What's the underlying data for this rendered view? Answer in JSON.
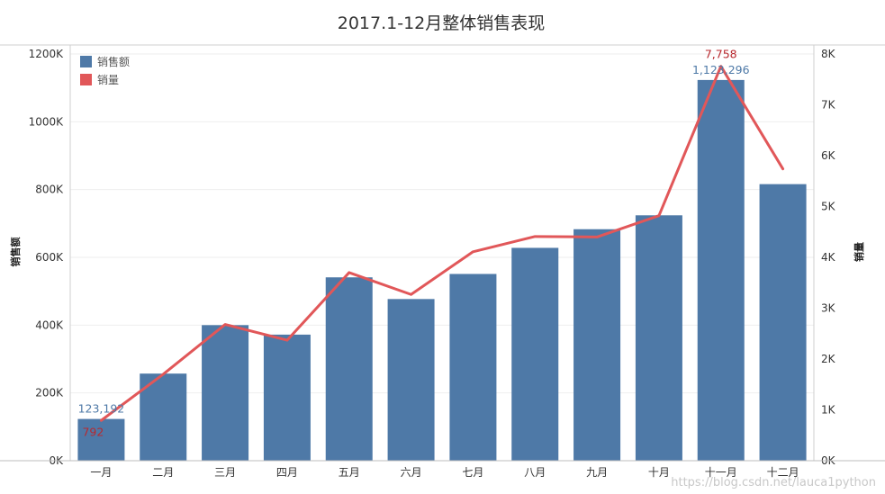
{
  "chart_data": {
    "type": "bar",
    "title": "2017.1-12月整体销售表现",
    "categories": [
      "一月",
      "二月",
      "三月",
      "四月",
      "五月",
      "六月",
      "七月",
      "八月",
      "九月",
      "十月",
      "十一月",
      "十二月"
    ],
    "series": [
      {
        "name": "销售额",
        "type": "bar",
        "axis": "left",
        "color": "#4e79a7",
        "values": [
          123192,
          257000,
          400000,
          372000,
          541000,
          477000,
          551000,
          628000,
          683000,
          724000,
          1123296,
          816000
        ]
      },
      {
        "name": "销量",
        "type": "line",
        "axis": "right",
        "color": "#e15759",
        "values": [
          792,
          1700,
          2680,
          2370,
          3700,
          3270,
          4110,
          4410,
          4400,
          4820,
          7758,
          5740
        ]
      }
    ],
    "ylabel": "销售额",
    "y2label": "销量",
    "ylim": [
      0,
      1200000
    ],
    "y2lim": [
      0,
      8000
    ],
    "yticks": [
      "0K",
      "200K",
      "400K",
      "600K",
      "800K",
      "1000K",
      "1200K"
    ],
    "y2ticks": [
      "0K",
      "1K",
      "2K",
      "3K",
      "4K",
      "5K",
      "6K",
      "7K",
      "8K"
    ],
    "data_labels": {
      "bar_first": "123,192",
      "bar_max": "1,123,296",
      "line_first": "792",
      "line_max": "7,758"
    },
    "legend_position": "top-left",
    "grid": true
  },
  "watermark": "https://blog.csdn.net/lauca1python"
}
